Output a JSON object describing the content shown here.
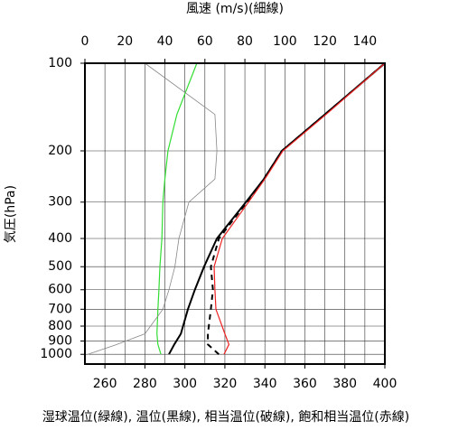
{
  "chart_data": {
    "type": "line",
    "title": "風速 (m/s)(細線)",
    "ylabel": "気圧(hPa)",
    "xlabel": "湿球温位(緑線), 温位(黒線), 相当温位(破線), 飽和相当温位(赤線)",
    "pressure": [
      1000,
      925,
      850,
      700,
      600,
      500,
      400,
      300,
      250,
      200,
      150,
      100
    ],
    "xlim": [
      250,
      400
    ],
    "xticks": [
      260,
      280,
      300,
      320,
      340,
      360,
      380,
      400
    ],
    "x2lim": [
      0,
      150
    ],
    "x2ticks": [
      0,
      20,
      40,
      60,
      80,
      100,
      120,
      140
    ],
    "ylim": [
      1080,
      100
    ],
    "ylog": true,
    "yticks": [
      100,
      200,
      300,
      400,
      500,
      600,
      700,
      800,
      900,
      1000
    ],
    "grid": true,
    "series": [
      {
        "name": "湿球温位",
        "color": "#33dd33",
        "dash": false,
        "values": [
          288,
          286.5,
          286,
          286.5,
          287,
          287.5,
          288.5,
          289,
          290,
          291.5,
          296,
          306
        ]
      },
      {
        "name": "温位",
        "color": "#000000",
        "dash": false,
        "values": [
          292,
          294.7,
          298,
          301.5,
          305,
          309.6,
          316,
          330.5,
          339.5,
          348.5,
          370,
          400
        ]
      },
      {
        "name": "相当温位",
        "color": "#000000",
        "dash": true,
        "values": [
          317,
          311.5,
          311.5,
          313,
          314,
          313,
          317,
          331,
          339.5,
          348.5,
          370,
          400
        ]
      },
      {
        "name": "飽和相当温位",
        "color": "#ee2222",
        "dash": false,
        "values": [
          319.6,
          322,
          320,
          315.5,
          315,
          314.6,
          318.7,
          331.8,
          340,
          349,
          370.6,
          400
        ]
      },
      {
        "name": "風速",
        "color": "#888888",
        "dash": false,
        "axis": "x2",
        "values": [
          1.4,
          16,
          30,
          39,
          42,
          45,
          47,
          52,
          65,
          66,
          65,
          30
        ]
      }
    ]
  }
}
